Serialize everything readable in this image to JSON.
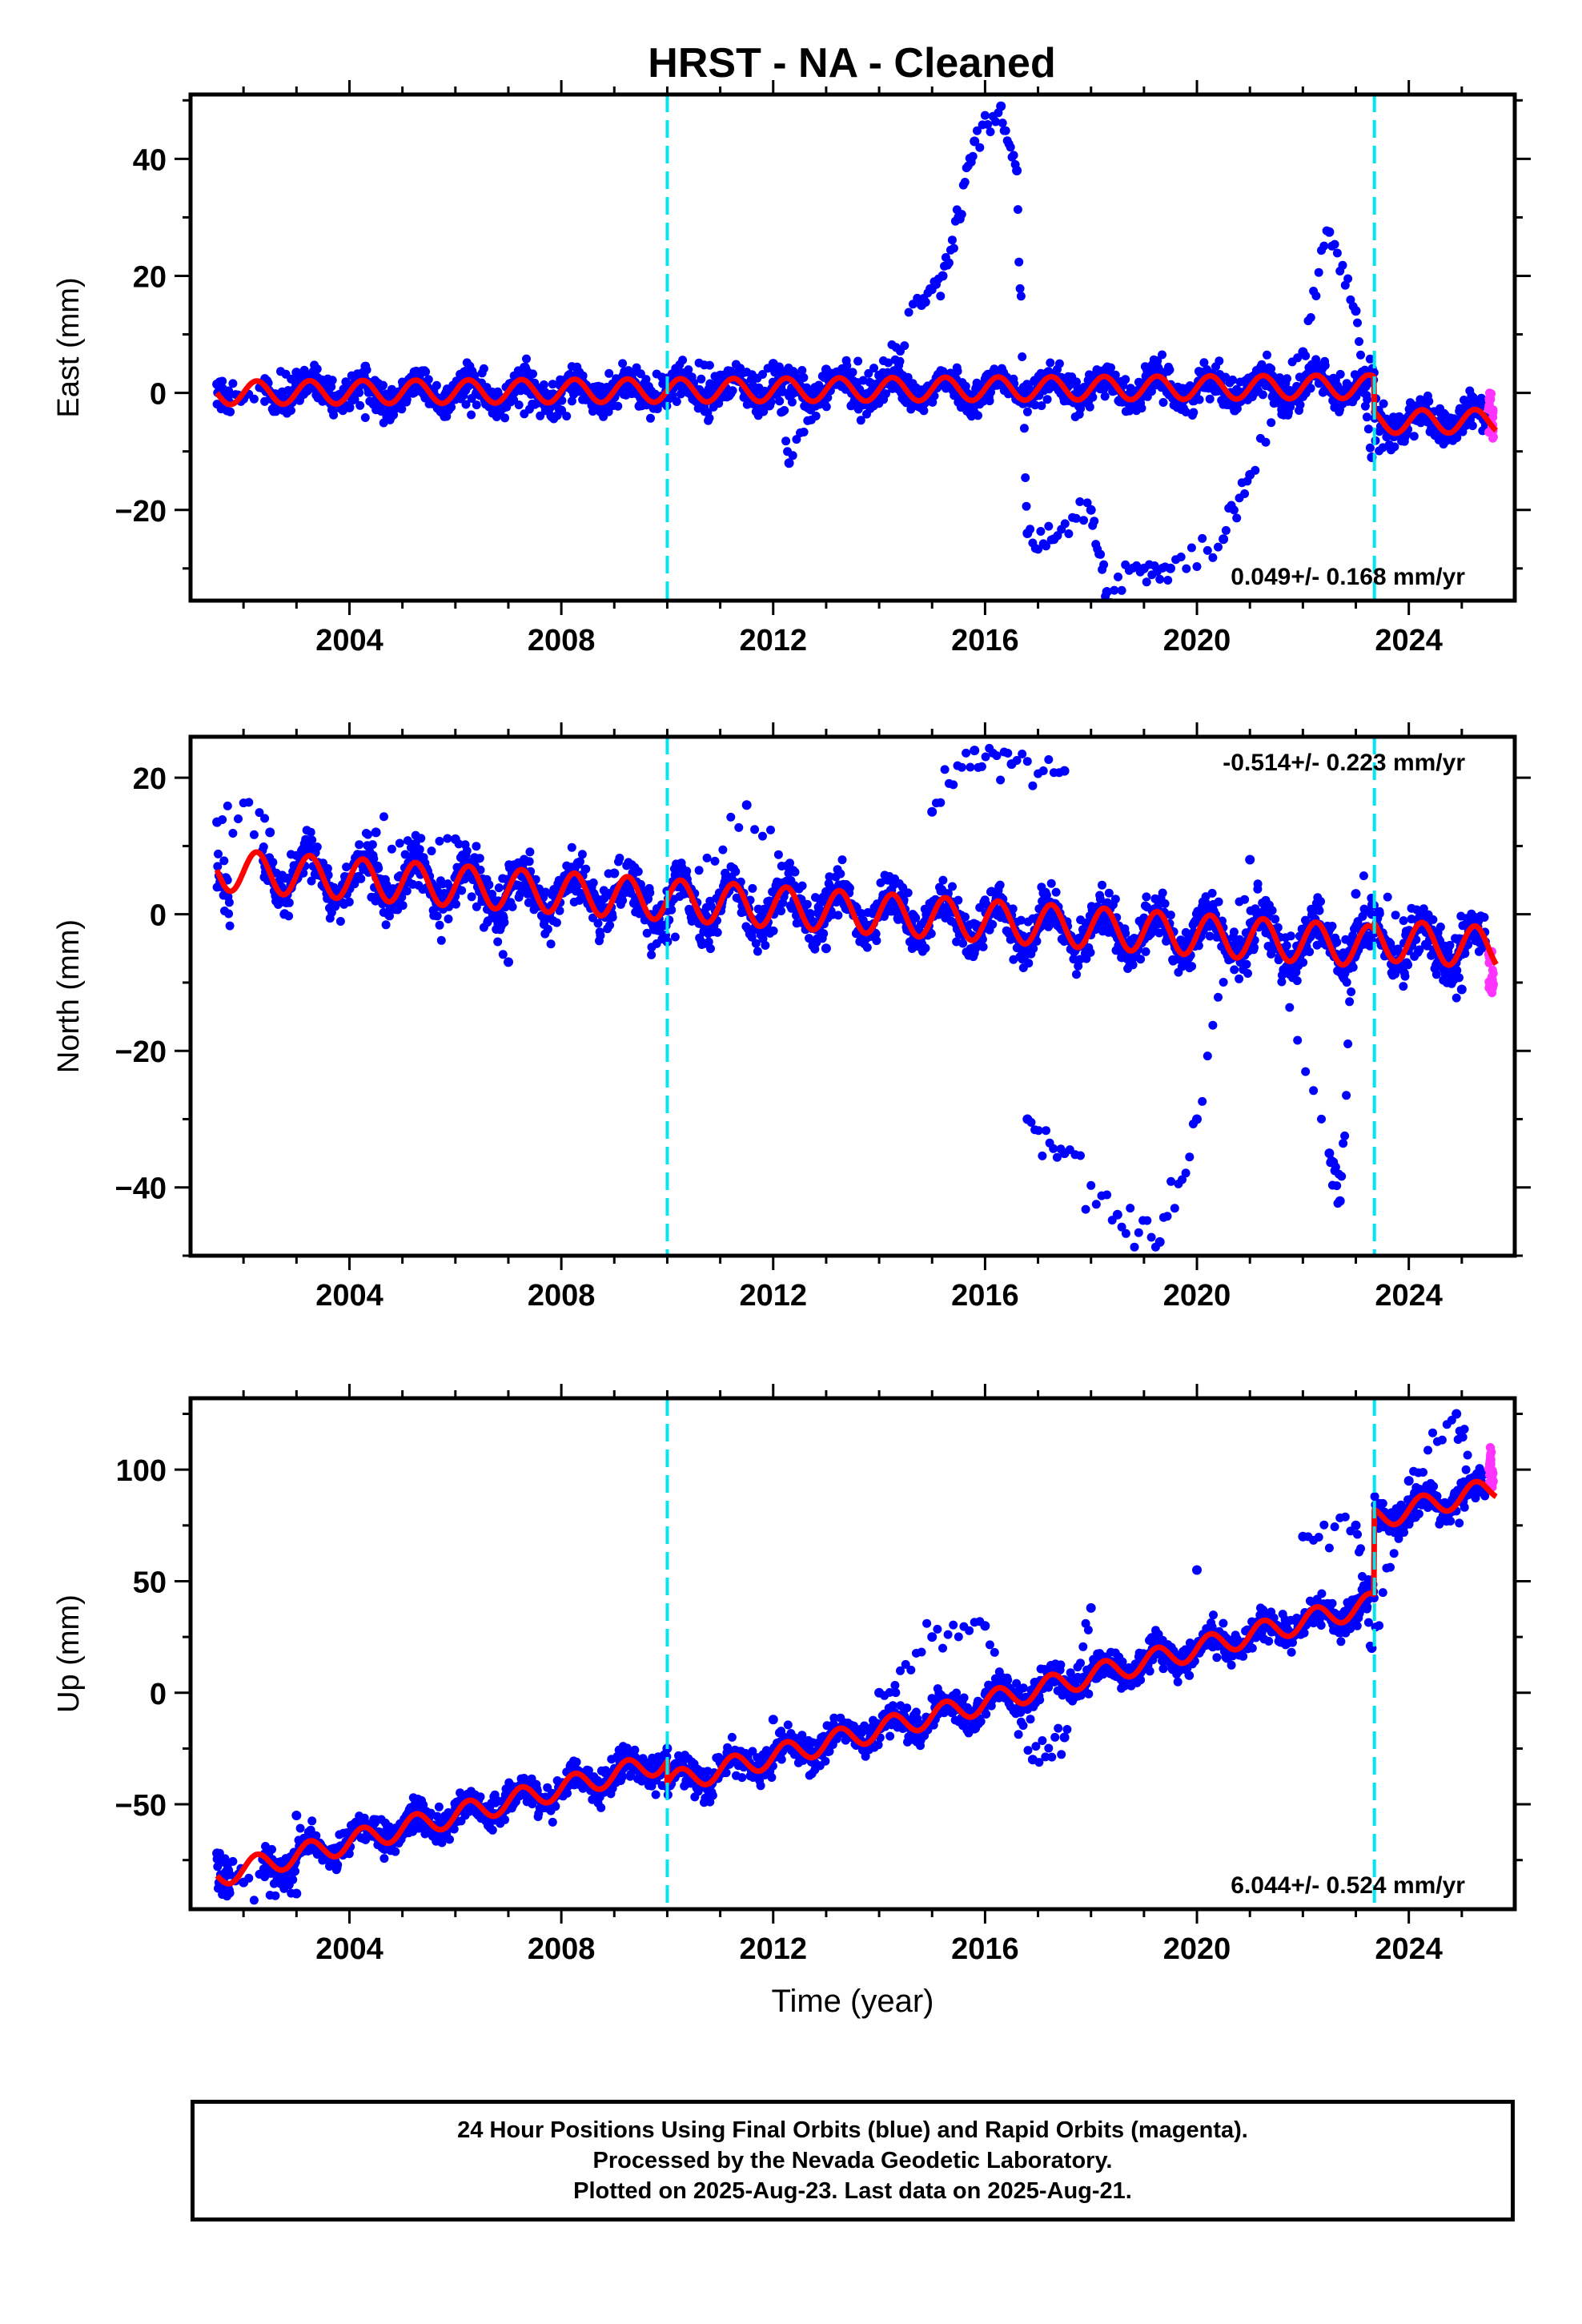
{
  "title": "HRST  - NA - Cleaned",
  "colors": {
    "final_orbits": "#0000ff",
    "rapid_orbits": "#ff33ff",
    "model": "#ff0000",
    "offset_lines": "#00e5ee"
  },
  "offsets": [
    2010.0,
    2023.35
  ],
  "chart_data": [
    {
      "type": "scatter",
      "component": "East",
      "ylabel": "East (mm)",
      "xlabel": "",
      "xlim": [
        2001.0,
        2026.0
      ],
      "ylim": [
        -35.5,
        51
      ],
      "xticks": [
        "2004",
        "2008",
        "2012",
        "2016",
        "2020",
        "2024"
      ],
      "yticks": [
        "40",
        "20",
        "0",
        "−20"
      ],
      "rate_label": "0.049+/- 0.168 mm/yr",
      "rate_position": "bottom-right",
      "trend": {
        "intercept": 0.0,
        "slope": 0.049,
        "annual_amplitude": 2.0,
        "segments": [
          {
            "from": 2001.5,
            "to": 2010.0,
            "offset": 0.0
          },
          {
            "from": 2010.0,
            "to": 2023.35,
            "offset": 0.0
          },
          {
            "from": 2023.35,
            "to": 2025.65,
            "offset": -6.0
          }
        ]
      },
      "scatter_sigma": 2.0,
      "data_points": [
        [
          2001.5,
          1.5
        ],
        [
          2002.0,
          -1.0
        ],
        [
          2003.0,
          3.5
        ],
        [
          2004.0,
          -2.5
        ],
        [
          2005.0,
          0.5
        ],
        [
          2006.0,
          -1.0
        ],
        [
          2007.0,
          -1.5
        ],
        [
          2008.0,
          -3.0
        ],
        [
          2009.0,
          1.0
        ],
        [
          2010.0,
          2.5
        ],
        [
          2011.0,
          3.0
        ],
        [
          2012.0,
          5.0
        ],
        [
          2012.3,
          -12.0
        ],
        [
          2013.0,
          4.0
        ],
        [
          2014.0,
          3.0
        ],
        [
          2014.8,
          15.0
        ],
        [
          2015.2,
          20.0
        ],
        [
          2015.5,
          30.0
        ],
        [
          2015.8,
          43.0
        ],
        [
          2016.3,
          49.0
        ],
        [
          2016.6,
          38.0
        ],
        [
          2016.8,
          -24.0
        ],
        [
          2017.3,
          -25.0
        ],
        [
          2018.0,
          -20.0
        ],
        [
          2018.3,
          -34.0
        ],
        [
          2019.0,
          -30.0
        ],
        [
          2019.5,
          -30.0
        ],
        [
          2020.5,
          -25.0
        ],
        [
          2021.0,
          -14.0
        ],
        [
          2022.0,
          7.0
        ],
        [
          2022.5,
          27.5
        ],
        [
          2023.0,
          14.0
        ],
        [
          2023.3,
          -11.0
        ],
        [
          2024.0,
          -4.0
        ],
        [
          2025.0,
          -5.5
        ]
      ],
      "rapid_points": [
        [
          2025.5,
          0.0
        ],
        [
          2025.55,
          -3.0
        ],
        [
          2025.6,
          -8.0
        ]
      ]
    },
    {
      "type": "scatter",
      "component": "North",
      "ylabel": "North (mm)",
      "xlabel": "",
      "xlim": [
        2001.0,
        2026.0
      ],
      "ylim": [
        -50,
        26
      ],
      "xticks": [
        "2004",
        "2008",
        "2012",
        "2016",
        "2020",
        "2024"
      ],
      "yticks": [
        "20",
        "0",
        "−20",
        "−40"
      ],
      "rate_label": "-0.514+/- 0.223 mm/yr",
      "rate_position": "top-right",
      "trend": {
        "intercept": 6.5,
        "slope": -0.514,
        "annual_amplitude": 3.0,
        "segments": [
          {
            "from": 2001.5,
            "to": 2010.0,
            "offset": 0.0
          },
          {
            "from": 2010.0,
            "to": 2023.35,
            "offset": 0.0
          },
          {
            "from": 2023.35,
            "to": 2025.65,
            "offset": 1.0
          }
        ]
      },
      "scatter_sigma": 2.5,
      "data_points": [
        [
          2001.5,
          13.5
        ],
        [
          2002.5,
          12.0
        ],
        [
          2004.5,
          12.0
        ],
        [
          2006.0,
          11.0
        ],
        [
          2007.0,
          -7.0
        ],
        [
          2009.0,
          6.0
        ],
        [
          2010.0,
          -4.0
        ],
        [
          2011.5,
          16.0
        ],
        [
          2013.0,
          -5.0
        ],
        [
          2015.0,
          15.0
        ],
        [
          2015.8,
          24.0
        ],
        [
          2016.5,
          22.0
        ],
        [
          2017.5,
          21.0
        ],
        [
          2016.8,
          -30.0
        ],
        [
          2017.5,
          -35.0
        ],
        [
          2018.5,
          -44.0
        ],
        [
          2019.3,
          -48.0
        ],
        [
          2020.0,
          -30.0
        ],
        [
          2021.0,
          8.0
        ],
        [
          2022.5,
          -35.0
        ],
        [
          2022.7,
          -42.0
        ],
        [
          2023.0,
          3.0
        ],
        [
          2024.5,
          -3.0
        ],
        [
          2025.0,
          -11.0
        ]
      ],
      "rapid_points": [
        [
          2025.5,
          -5.0
        ],
        [
          2025.55,
          -8.0
        ],
        [
          2025.6,
          -12.0
        ]
      ]
    },
    {
      "type": "scatter",
      "component": "Up",
      "ylabel": "Up (mm)",
      "xlabel": "Time (year)",
      "xlim": [
        2001.0,
        2026.0
      ],
      "ylim": [
        -97,
        132
      ],
      "xticks": [
        "2004",
        "2008",
        "2012",
        "2016",
        "2020",
        "2024"
      ],
      "yticks": [
        "100",
        "50",
        "0",
        "−50"
      ],
      "rate_label": "6.044+/- 0.524 mm/yr",
      "rate_position": "bottom-right",
      "trend": {
        "intercept": -82.0,
        "slope": 6.044,
        "annual_amplitude": 5.0,
        "segments": [
          {
            "from": 2001.5,
            "to": 2010.0,
            "offset": 0.0
          },
          {
            "from": 2010.0,
            "to": 2023.35,
            "offset": -10.0
          },
          {
            "from": 2023.35,
            "to": 2025.65,
            "offset": 28.0
          }
        ]
      },
      "scatter_sigma": 5.0,
      "data_points": [
        [
          2001.5,
          -72.0
        ],
        [
          2002.0,
          -85.0
        ],
        [
          2003.0,
          -90.0
        ],
        [
          2003.0,
          -55.0
        ],
        [
          2005.0,
          -60.0
        ],
        [
          2008.0,
          -45.0
        ],
        [
          2010.0,
          -25.0
        ],
        [
          2012.0,
          -12.0
        ],
        [
          2014.0,
          0.0
        ],
        [
          2015.0,
          25.0
        ],
        [
          2016.0,
          30.0
        ],
        [
          2016.9,
          -30.0
        ],
        [
          2017.5,
          -20.0
        ],
        [
          2018.0,
          38.0
        ],
        [
          2020.0,
          55.0
        ],
        [
          2022.0,
          70.0
        ],
        [
          2023.0,
          75.0
        ],
        [
          2023.3,
          20.0
        ],
        [
          2024.0,
          95.0
        ],
        [
          2024.9,
          125.0
        ],
        [
          2025.2,
          90.0
        ]
      ],
      "rapid_points": [
        [
          2025.5,
          110.0
        ],
        [
          2025.55,
          100.0
        ],
        [
          2025.6,
          90.0
        ]
      ]
    }
  ],
  "footer": {
    "line1": "24 Hour Positions Using Final Orbits (blue) and Rapid Orbits (magenta).",
    "line2": "Processed by the Nevada Geodetic Laboratory.",
    "line3": "Plotted on 2025-Aug-23. Last data on 2025-Aug-21."
  }
}
